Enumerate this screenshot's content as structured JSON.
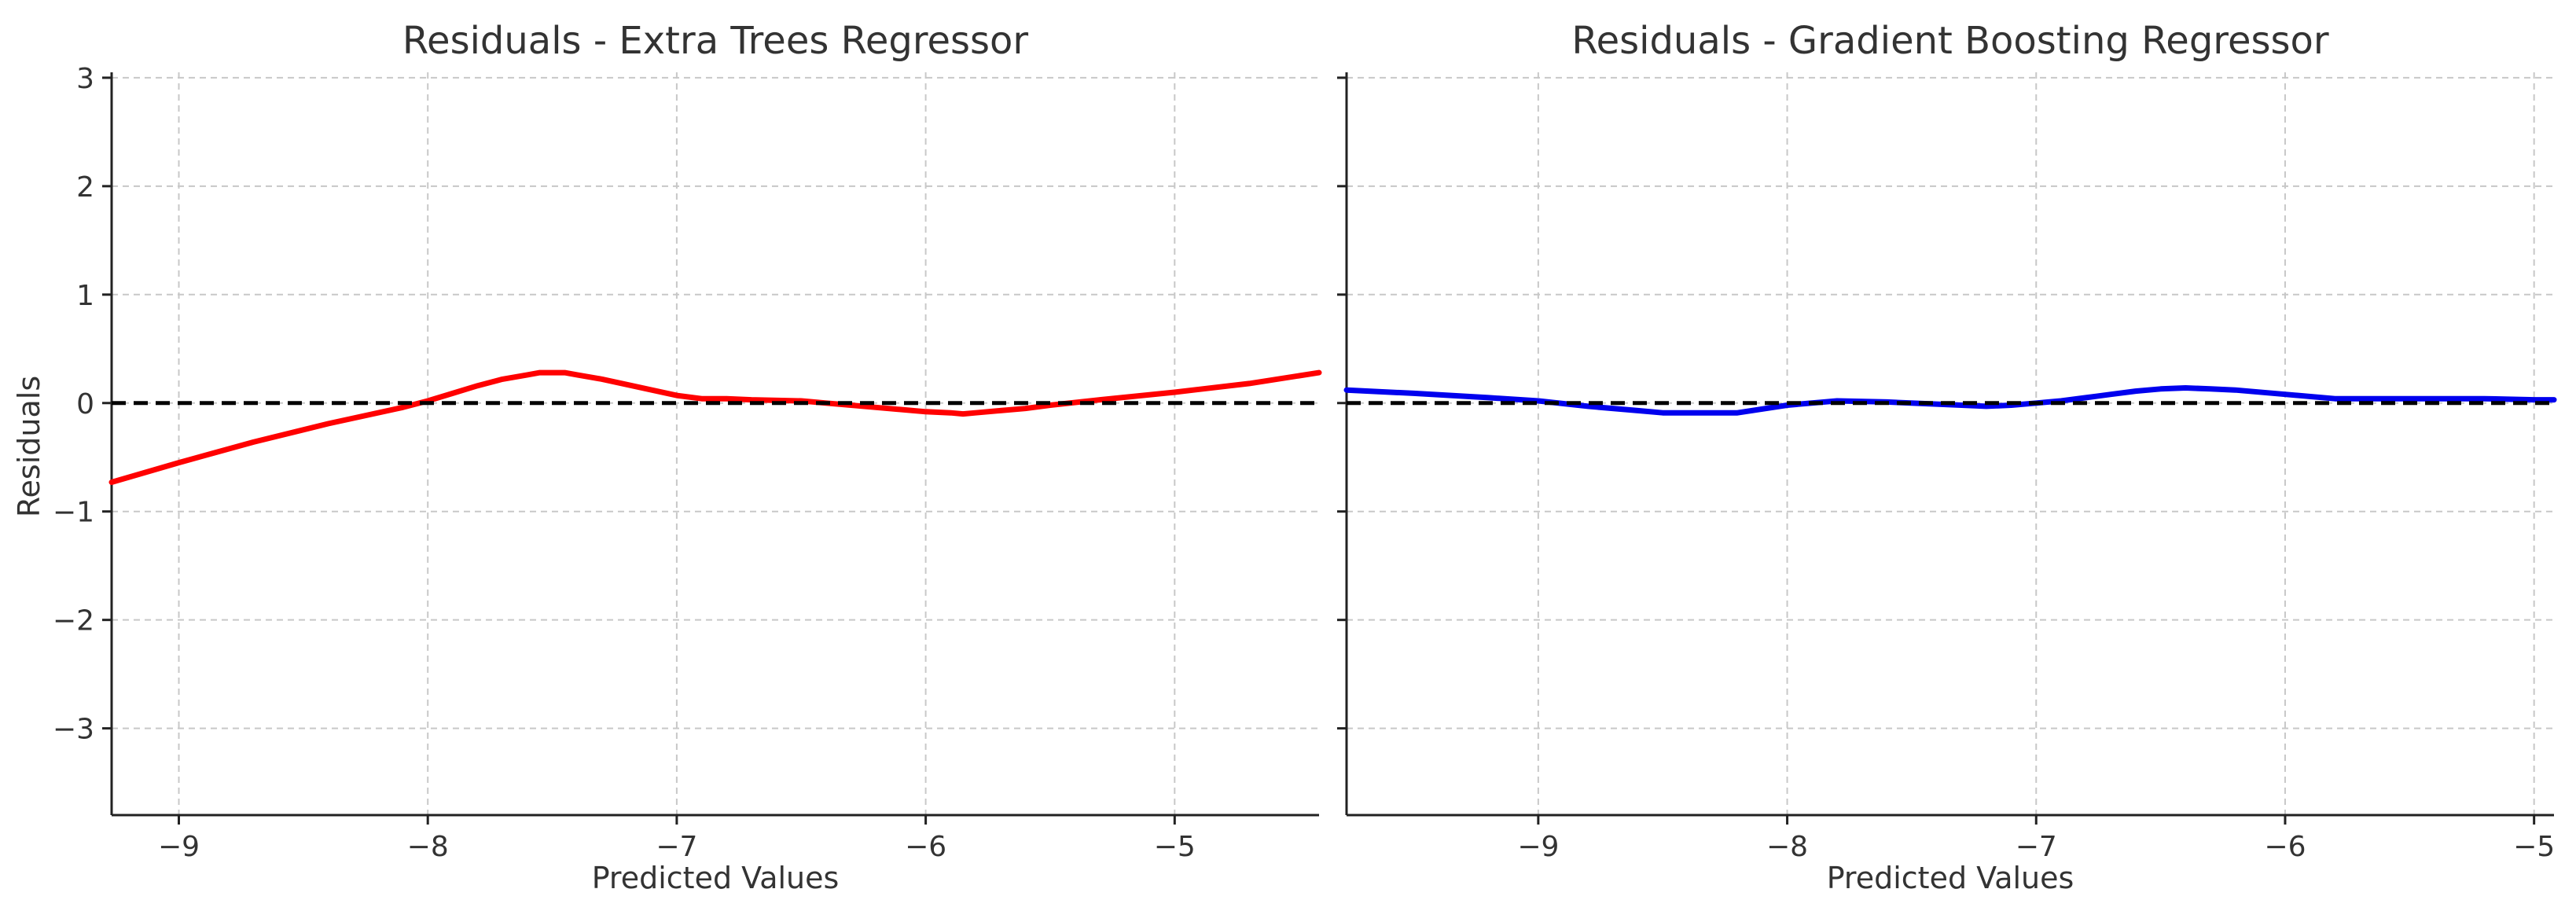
{
  "chart_data": [
    {
      "type": "line",
      "title": "Residuals - Extra Trees Regressor",
      "xlabel": "Predicted Values",
      "ylabel": "Residuals",
      "xlim": [
        -9.27,
        -4.42
      ],
      "ylim": [
        -3.8,
        3.05
      ],
      "xticks": [
        -9,
        -8,
        -7,
        -6,
        -5
      ],
      "xtick_labels": [
        "−9",
        "−8",
        "−7",
        "−6",
        "−5"
      ],
      "yticks": [
        -3,
        -2,
        -1,
        0,
        1,
        2,
        3
      ],
      "ytick_labels": [
        "−3",
        "−2",
        "−1",
        "0",
        "1",
        "2",
        "3"
      ],
      "grid": true,
      "reference_line": {
        "y": 0,
        "style": "dashed",
        "color": "#000000"
      },
      "series": [
        {
          "color": "#ff0000",
          "x": [
            -9.27,
            -9.0,
            -8.7,
            -8.4,
            -8.1,
            -8.0,
            -7.9,
            -7.8,
            -7.7,
            -7.6,
            -7.55,
            -7.45,
            -7.4,
            -7.35,
            -7.3,
            -7.2,
            -7.1,
            -7.0,
            -6.9,
            -6.8,
            -6.7,
            -6.5,
            -6.4,
            -6.3,
            -6.2,
            -6.1,
            -6.0,
            -5.9,
            -5.85,
            -5.8,
            -5.7,
            -5.6,
            -5.5,
            -5.3,
            -5.0,
            -4.7,
            -4.42
          ],
          "y": [
            -0.73,
            -0.55,
            -0.36,
            -0.19,
            -0.04,
            0.02,
            0.09,
            0.16,
            0.22,
            0.26,
            0.28,
            0.28,
            0.26,
            0.24,
            0.22,
            0.17,
            0.12,
            0.07,
            0.04,
            0.04,
            0.03,
            0.02,
            0.0,
            -0.02,
            -0.04,
            -0.06,
            -0.08,
            -0.09,
            -0.1,
            -0.09,
            -0.07,
            -0.05,
            -0.02,
            0.03,
            0.1,
            0.18,
            0.28
          ]
        }
      ]
    },
    {
      "type": "line",
      "title": "Residuals - Gradient Boosting Regressor",
      "xlabel": "Predicted Values",
      "ylabel": "",
      "xlim": [
        -9.77,
        -4.92
      ],
      "ylim": [
        -3.8,
        3.05
      ],
      "xticks": [
        -9,
        -8,
        -7,
        -6,
        -5
      ],
      "xtick_labels": [
        "−9",
        "−8",
        "−7",
        "−6",
        "−5"
      ],
      "yticks": [
        -3,
        -2,
        -1,
        0,
        1,
        2,
        3
      ],
      "ytick_labels": [],
      "grid": true,
      "reference_line": {
        "y": 0,
        "style": "dashed",
        "color": "#000000"
      },
      "series": [
        {
          "color": "#0000ee",
          "x": [
            -9.77,
            -9.5,
            -9.2,
            -9.0,
            -8.8,
            -8.6,
            -8.5,
            -8.2,
            -8.0,
            -7.8,
            -7.6,
            -7.4,
            -7.3,
            -7.2,
            -7.1,
            -7.0,
            -6.9,
            -6.8,
            -6.7,
            -6.6,
            -6.5,
            -6.4,
            -6.3,
            -6.2,
            -6.0,
            -5.8,
            -5.5,
            -5.2,
            -5.0,
            -4.92
          ],
          "y": [
            0.12,
            0.09,
            0.05,
            0.02,
            -0.03,
            -0.07,
            -0.09,
            -0.09,
            -0.02,
            0.02,
            0.01,
            -0.01,
            -0.02,
            -0.03,
            -0.02,
            0.0,
            0.02,
            0.05,
            0.08,
            0.11,
            0.13,
            0.14,
            0.13,
            0.12,
            0.08,
            0.04,
            0.04,
            0.04,
            0.03,
            0.03
          ]
        }
      ]
    }
  ]
}
